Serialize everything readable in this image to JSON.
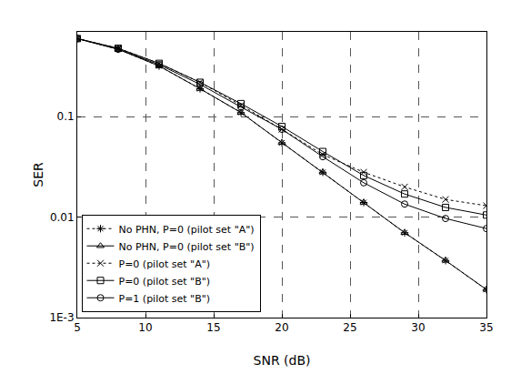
{
  "chart_data": {
    "type": "line",
    "x_label": "SNR (dB)",
    "y_label": "SER",
    "x": [
      5,
      8,
      11,
      14,
      17,
      20,
      23,
      26,
      29,
      32,
      35
    ],
    "series": [
      {
        "name": "No PHN, P=0 (pilot set \"A\")",
        "color": "#000000",
        "marker": "asterisk",
        "line_style": "dot",
        "values": [
          0.6,
          0.47,
          0.32,
          0.19,
          0.11,
          0.055,
          0.028,
          0.014,
          0.007,
          0.0037,
          0.0019
        ]
      },
      {
        "name": "No PHN, P=0 (pilot set \"B\")",
        "color": "#000000",
        "marker": "triangle",
        "line_style": "solid",
        "values": [
          0.6,
          0.47,
          0.32,
          0.19,
          0.11,
          0.055,
          0.028,
          0.014,
          0.007,
          0.0037,
          0.0019
        ]
      },
      {
        "name": "P=0 (pilot set \"A\")",
        "color": "#000000",
        "marker": "x",
        "line_style": "dot",
        "values": [
          0.6,
          0.48,
          0.34,
          0.22,
          0.13,
          0.075,
          0.042,
          0.028,
          0.02,
          0.015,
          0.013
        ]
      },
      {
        "name": "P=0 (pilot set \"B\")",
        "color": "#000000",
        "marker": "square",
        "line_style": "solid",
        "values": [
          0.6,
          0.48,
          0.34,
          0.22,
          0.135,
          0.08,
          0.045,
          0.026,
          0.017,
          0.0125,
          0.0105
        ]
      },
      {
        "name": "P=1 (pilot set \"B\")",
        "color": "#000000",
        "marker": "circle",
        "line_style": "solid",
        "values": [
          0.6,
          0.47,
          0.33,
          0.21,
          0.125,
          0.075,
          0.04,
          0.022,
          0.0135,
          0.0097,
          0.0077
        ]
      }
    ],
    "xlim": [
      5,
      35
    ],
    "xticks": [
      5,
      10,
      15,
      20,
      25,
      30,
      35
    ],
    "ylim": [
      0.001,
      0.7
    ],
    "yticks": [
      {
        "value": 0.001,
        "label": "1E-3"
      },
      0.01,
      0.1
    ],
    "log": "y",
    "grid": true,
    "legend": "bottom-left"
  }
}
